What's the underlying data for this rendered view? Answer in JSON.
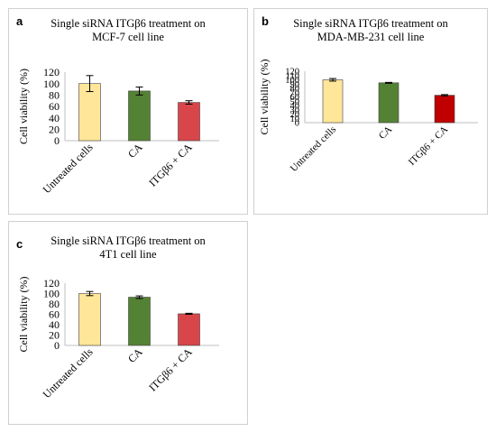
{
  "chart_data": [
    {
      "type": "bar",
      "panel_label": "a",
      "title_lines": [
        "Single siRNA ITGβ6 treatment on",
        "MCF-7 cell line"
      ],
      "ylabel": "Cell viability  (%)",
      "ylim": [
        0,
        120
      ],
      "yticks": [
        "0",
        "20",
        "40",
        "60",
        "80",
        "100",
        "120"
      ],
      "categories": [
        "Untreated cells",
        "CA",
        "ITGβ6 + CA"
      ],
      "values": [
        100,
        87,
        67
      ],
      "errors": [
        14,
        7,
        3
      ],
      "bar_colors": [
        "#FFE699",
        "#548235",
        "#D9464A"
      ],
      "grid": false
    },
    {
      "type": "bar",
      "panel_label": "b",
      "title_lines": [
        "Single  siRNA ITGβ6 treatment on",
        "MDA-MB-231  cell line"
      ],
      "ylabel": "Cell viability  (%)",
      "ylim": [
        0,
        120
      ],
      "yticks": [
        "0",
        "10",
        "20",
        "30",
        "40",
        "50",
        "60",
        "70",
        "80",
        "90",
        "100",
        "110",
        "120"
      ],
      "categories": [
        "Untreated cells",
        "CA",
        "ITGβ6 + CA"
      ],
      "values": [
        100,
        93,
        64
      ],
      "errors": [
        3,
        1,
        1.5
      ],
      "bar_colors": [
        "#FFE699",
        "#548235",
        "#C00000"
      ],
      "grid": false
    },
    {
      "type": "bar",
      "panel_label": "c",
      "title_lines": [
        "Single siRNA ITGβ6 treatment on",
        "4T1 cell line"
      ],
      "ylabel": "Cell viability  (%)",
      "ylim": [
        0,
        120
      ],
      "yticks": [
        "0",
        "20",
        "40",
        "60",
        "80",
        "100",
        "120"
      ],
      "categories": [
        "Untreated cells",
        "CA",
        "ITGβ6 + CA"
      ],
      "values": [
        100,
        93,
        61
      ],
      "errors": [
        4,
        2.5,
        1
      ],
      "bar_colors": [
        "#FFE699",
        "#548235",
        "#D9464A"
      ],
      "grid": false
    }
  ]
}
